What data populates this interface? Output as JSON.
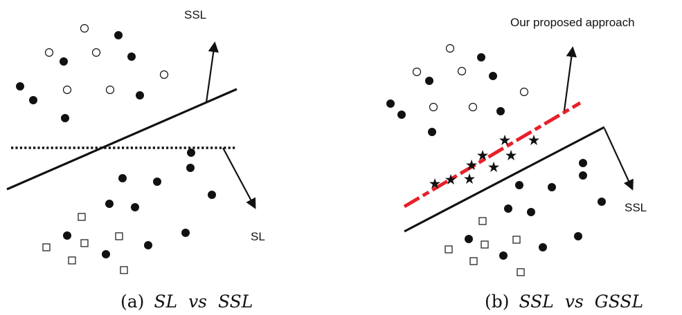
{
  "panel_a": {
    "arrow_labels": {
      "ssl": "SSL",
      "sl": "SL"
    },
    "caption": {
      "tag": "(a)",
      "left": "SL",
      "vs": "vs",
      "right": "SSL"
    }
  },
  "panel_b": {
    "arrow_labels": {
      "proposed": "Our proposed approach",
      "ssl": "SSL"
    },
    "caption": {
      "tag": "(b)",
      "left": "SSL",
      "vs": "vs",
      "right": "GSSL"
    }
  },
  "colors": {
    "ink": "#111111",
    "proposed_boundary": "#e8202a",
    "background": "#ffffff"
  },
  "legend_shapes": {
    "labeled_point": "filled-circle",
    "unlabeled_class_1": "hollow-circle",
    "unlabeled_class_2": "hollow-square",
    "transformed_point": "star"
  }
}
